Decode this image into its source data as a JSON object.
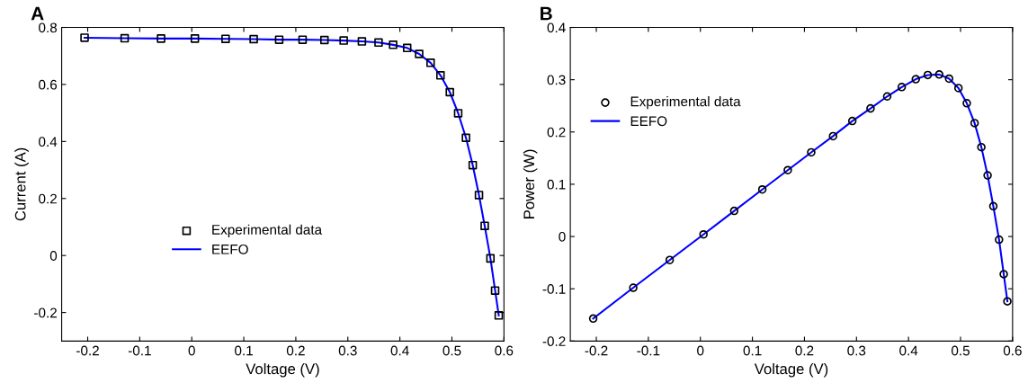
{
  "chart_data": [
    {
      "type": "line",
      "title": "A",
      "xlabel": "Voltage (V)",
      "ylabel": "Current (A)",
      "xlim": [
        -0.25,
        0.6
      ],
      "xticks": [
        -0.2,
        -0.1,
        0,
        0.1,
        0.2,
        0.3,
        0.4,
        0.5,
        0.6
      ],
      "ylim": [
        -0.3,
        0.8
      ],
      "yticks": [
        -0.2,
        0,
        0.2,
        0.4,
        0.6,
        0.8
      ],
      "grid": false,
      "legend": "center",
      "x": [
        -0.206,
        -0.129,
        -0.059,
        0.006,
        0.065,
        0.119,
        0.168,
        0.213,
        0.255,
        0.292,
        0.327,
        0.359,
        0.387,
        0.414,
        0.437,
        0.459,
        0.478,
        0.496,
        0.512,
        0.527,
        0.54,
        0.552,
        0.563,
        0.574,
        0.583,
        0.59
      ],
      "series": [
        {
          "name": "Experimental data",
          "type": "scatter",
          "marker": "square",
          "color": "#000000",
          "values": [
            0.764,
            0.762,
            0.761,
            0.761,
            0.76,
            0.759,
            0.757,
            0.757,
            0.756,
            0.754,
            0.751,
            0.747,
            0.739,
            0.728,
            0.707,
            0.676,
            0.632,
            0.573,
            0.499,
            0.413,
            0.317,
            0.212,
            0.104,
            -0.01,
            -0.123,
            -0.21
          ]
        },
        {
          "name": "EEFO",
          "marker": "none",
          "line_style": "solid",
          "color": "#0000ff",
          "values": [
            0.764,
            0.762,
            0.761,
            0.761,
            0.76,
            0.759,
            0.757,
            0.757,
            0.756,
            0.754,
            0.751,
            0.747,
            0.739,
            0.728,
            0.707,
            0.676,
            0.632,
            0.573,
            0.499,
            0.413,
            0.317,
            0.212,
            0.104,
            -0.01,
            -0.123,
            -0.21
          ]
        }
      ]
    },
    {
      "type": "line",
      "title": "B",
      "xlabel": "Voltage (V)",
      "ylabel": "Power (W)",
      "xlim": [
        -0.25,
        0.6
      ],
      "xticks": [
        -0.2,
        -0.1,
        0,
        0.1,
        0.2,
        0.3,
        0.4,
        0.5,
        0.6
      ],
      "ylim": [
        -0.2,
        0.4
      ],
      "yticks": [
        -0.2,
        -0.1,
        0,
        0.1,
        0.2,
        0.3,
        0.4
      ],
      "grid": false,
      "legend": "top left",
      "x": [
        -0.206,
        -0.129,
        -0.059,
        0.006,
        0.065,
        0.119,
        0.168,
        0.213,
        0.255,
        0.292,
        0.327,
        0.359,
        0.387,
        0.414,
        0.437,
        0.459,
        0.478,
        0.496,
        0.512,
        0.527,
        0.54,
        0.552,
        0.563,
        0.574,
        0.583,
        0.59
      ],
      "series": [
        {
          "name": "Experimental data",
          "type": "scatter",
          "marker": "circle",
          "color": "#000000",
          "values": [
            -0.157,
            -0.098,
            -0.045,
            0.004,
            0.049,
            0.09,
            0.127,
            0.161,
            0.192,
            0.221,
            0.245,
            0.268,
            0.286,
            0.301,
            0.309,
            0.31,
            0.302,
            0.284,
            0.255,
            0.217,
            0.171,
            0.117,
            0.058,
            -0.006,
            -0.072,
            -0.124
          ]
        },
        {
          "name": "EEFO",
          "marker": "none",
          "line_style": "solid",
          "color": "#0000ff",
          "values": [
            -0.157,
            -0.098,
            -0.045,
            0.004,
            0.049,
            0.09,
            0.127,
            0.161,
            0.192,
            0.221,
            0.245,
            0.268,
            0.286,
            0.301,
            0.309,
            0.31,
            0.302,
            0.284,
            0.255,
            0.217,
            0.171,
            0.117,
            0.058,
            -0.006,
            -0.072,
            -0.124
          ]
        }
      ]
    }
  ]
}
